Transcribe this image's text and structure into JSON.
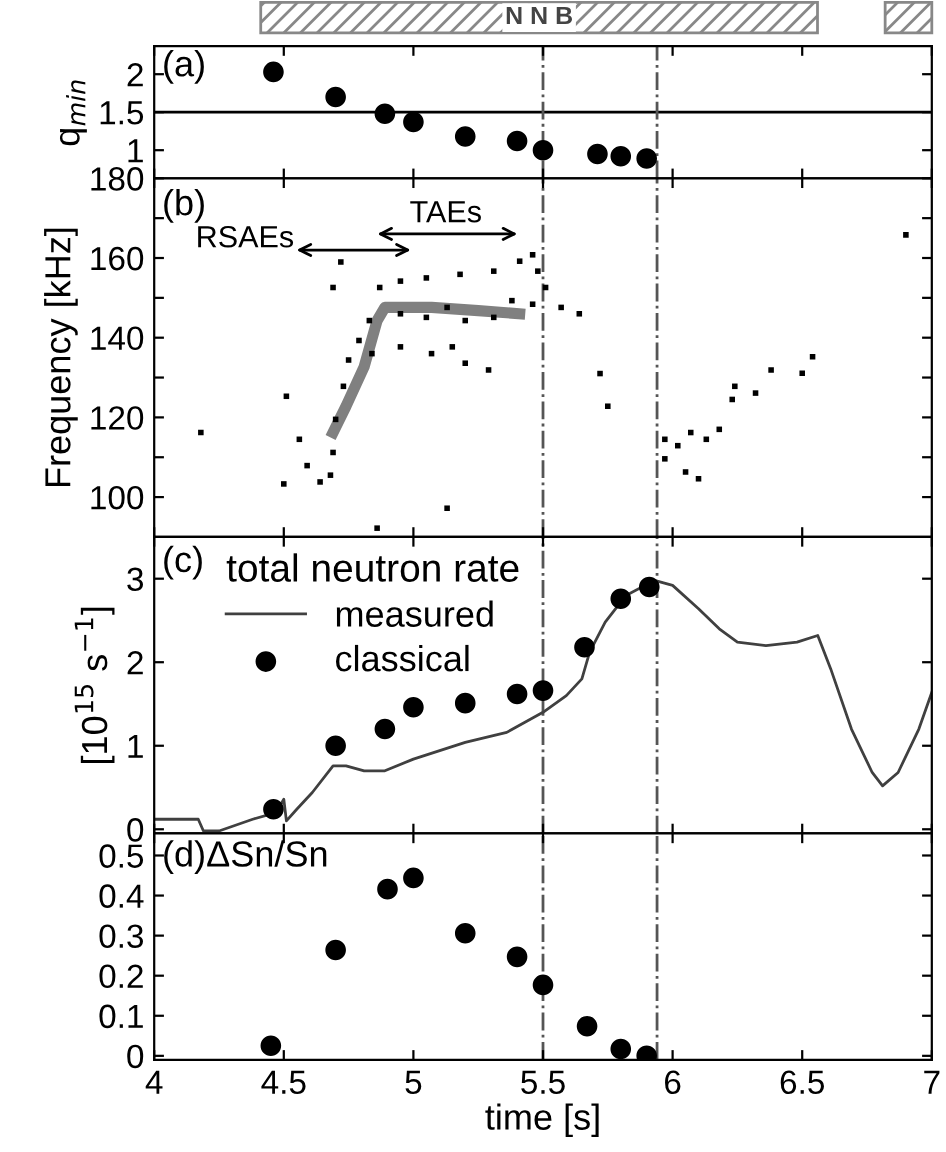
{
  "chart_data": [
    {
      "type": "scatter",
      "ylabel": "q$_{min}$",
      "marker": "circle",
      "tick_labels": "y",
      "legend": false,
      "grid": false,
      "x": [
        4.46,
        4.7,
        4.89,
        5.0,
        5.2,
        5.4,
        5.5,
        5.71,
        5.8,
        5.9
      ],
      "series": [
        {
          "color": "#000000",
          "values": [
            2.03,
            1.7,
            1.48,
            1.37,
            1.18,
            1.12,
            1.0,
            0.95,
            0.92,
            0.89
          ]
        }
      ],
      "xlim": [
        4,
        7
      ],
      "xticks": [
        4,
        4.5,
        5,
        5.5,
        6,
        6.5,
        7
      ],
      "ylim": [
        0.63,
        2.37
      ],
      "yticks": [
        1,
        1.5,
        2
      ],
      "annotations": [
        "(a)",
        "N N B"
      ],
      "ref_lines": [
        {
          "axis": "y",
          "value": 1.5,
          "line_style": "solid"
        },
        {
          "axis": "x",
          "value": 5.5,
          "line_style": "dashdot",
          "color": "#555555"
        },
        {
          "axis": "x",
          "value": 5.94,
          "line_style": "dashdot",
          "color": "#555555"
        }
      ]
    },
    {
      "type": "scatter",
      "ylabel": "Frequency [kHz]",
      "tick_labels": "y",
      "legend": false,
      "grid": false,
      "series": [
        {
          "color": "#000000",
          "marker": "square",
          "x": [
            4.18,
            4.5,
            4.51,
            4.56,
            4.59,
            4.64,
            4.68,
            4.69,
            4.7,
            4.73,
            4.75,
            4.79,
            4.83,
            4.87,
            4.95,
            5.05,
            5.18,
            5.31,
            5.41,
            5.46,
            4.84,
            4.95,
            5.07,
            5.2,
            5.29,
            5.15,
            4.95,
            5.05,
            5.13,
            5.2,
            5.31,
            5.38,
            5.46,
            5.48,
            5.51,
            5.57,
            5.64,
            5.72,
            5.75,
            4.72,
            4.69,
            5.97,
            5.97,
            6.02,
            6.05,
            6.07,
            6.1,
            6.13,
            6.18,
            6.23,
            6.24,
            6.32,
            6.38,
            6.5,
            6.54,
            4.86,
            5.13,
            6.9
          ],
          "values": [
            116.2,
            103.3,
            125.3,
            114.5,
            107.9,
            103.8,
            105.5,
            111.2,
            119.5,
            127.8,
            134.4,
            139.3,
            144.3,
            152.6,
            154.2,
            155.0,
            155.9,
            156.7,
            159.2,
            160.8,
            136.0,
            137.7,
            136.0,
            133.6,
            131.9,
            137.7,
            146.0,
            145.1,
            147.6,
            144.3,
            145.1,
            149.3,
            148.4,
            156.7,
            152.6,
            147.6,
            146.0,
            131.0,
            122.8,
            159.0,
            152.6,
            109.6,
            114.5,
            112.9,
            106.3,
            116.2,
            104.6,
            114.5,
            117.0,
            124.5,
            127.8,
            126.1,
            131.9,
            131.1,
            135.2,
            92.2,
            97.2,
            165.8
          ]
        },
        {
          "type": "line",
          "color": "#808080",
          "line_style": "solid",
          "x": [
            4.69,
            4.74,
            4.81,
            4.86,
            4.89,
            5.07,
            5.25,
            5.41
          ],
          "values": [
            116.2,
            122.8,
            132.7,
            144.3,
            147.6,
            147.6,
            146.8,
            146.0
          ]
        }
      ],
      "xlim": [
        4,
        7
      ],
      "xticks": [
        4,
        4.5,
        5,
        5.5,
        6,
        6.5,
        7
      ],
      "ylim": [
        90,
        180
      ],
      "yticks": [
        100,
        {
          "value": 110,
          "label": null
        },
        120,
        {
          "value": 130,
          "label": null
        },
        140,
        {
          "value": 150,
          "label": null
        },
        160,
        {
          "value": 170,
          "label": null
        },
        180
      ],
      "annotations": [
        "(b)",
        "RSAEs",
        "TAEs"
      ],
      "ref_lines": [
        {
          "axis": "x",
          "value": 5.5,
          "line_style": "dashdot",
          "color": "#555555"
        },
        {
          "axis": "x",
          "value": 5.94,
          "line_style": "dashdot",
          "color": "#555555"
        }
      ]
    },
    {
      "type": "scatter",
      "ylabel": "[10$^{15}$ s$^{−1}$]",
      "tick_labels": "y",
      "legend": "top left",
      "legend_title": "total neutron rate",
      "grid": false,
      "series": [
        {
          "name": "measured",
          "type": "line",
          "color": "#404040",
          "line_style": "solid",
          "x": [
            4.0,
            4.17,
            4.19,
            4.25,
            4.38,
            4.47,
            4.5,
            4.51,
            4.55,
            4.61,
            4.69,
            4.74,
            4.81,
            4.89,
            5.0,
            5.2,
            5.36,
            5.5,
            5.59,
            5.65,
            5.68,
            5.74,
            5.82,
            5.93,
            6.0,
            6.1,
            6.18,
            6.25,
            6.36,
            6.48,
            6.56,
            6.61,
            6.69,
            6.77,
            6.81,
            6.87,
            6.95,
            7.0
          ],
          "values": [
            0.12,
            0.12,
            -0.02,
            -0.02,
            0.12,
            0.2,
            0.36,
            0.1,
            0.24,
            0.44,
            0.76,
            0.76,
            0.7,
            0.7,
            0.84,
            1.04,
            1.16,
            1.4,
            1.6,
            1.8,
            2.12,
            2.48,
            2.8,
            2.98,
            2.92,
            2.64,
            2.4,
            2.24,
            2.2,
            2.24,
            2.32,
            1.92,
            1.2,
            0.68,
            0.52,
            0.68,
            1.2,
            1.64
          ]
        },
        {
          "name": "classical",
          "color": "#000000",
          "marker": "circle",
          "x": [
            4.46,
            4.7,
            4.89,
            5.0,
            5.2,
            5.4,
            5.5,
            5.66,
            5.8,
            5.91
          ],
          "values": [
            0.24,
            1.0,
            1.2,
            1.46,
            1.51,
            1.62,
            1.66,
            2.18,
            2.76,
            2.9
          ]
        }
      ],
      "xlim": [
        4,
        7
      ],
      "xticks": [
        4,
        4.5,
        5,
        5.5,
        6,
        6.5,
        7
      ],
      "ylim": [
        -0.05,
        3.5
      ],
      "yticks": [
        0,
        1,
        2,
        3
      ],
      "annotations": [
        "(c)"
      ],
      "ref_lines": [
        {
          "axis": "x",
          "value": 5.5,
          "line_style": "dashdot",
          "color": "#555555"
        },
        {
          "axis": "x",
          "value": 5.94,
          "line_style": "dashdot",
          "color": "#555555"
        }
      ]
    },
    {
      "type": "scatter",
      "xlabel": "time [s]",
      "marker": "circle",
      "legend": false,
      "grid": false,
      "x": [
        4.45,
        4.7,
        4.9,
        5.0,
        5.2,
        5.4,
        5.5,
        5.67,
        5.8,
        5.9
      ],
      "series": [
        {
          "color": "#000000",
          "values": [
            0.025,
            0.264,
            0.416,
            0.444,
            0.306,
            0.247,
            0.177,
            0.074,
            0.017,
            0.0
          ]
        }
      ],
      "xlim": [
        4,
        7
      ],
      "xticks": [
        4,
        4.5,
        5,
        5.5,
        6,
        6.5,
        7
      ],
      "ylim": [
        -0.01,
        0.555
      ],
      "yticks": [
        0,
        0.1,
        0.2,
        0.3,
        0.4,
        0.5
      ],
      "annotations": [
        "(d)ΔSn/Sn"
      ],
      "ref_lines": [
        {
          "axis": "x",
          "value": 5.5,
          "line_style": "dashdot",
          "color": "#555555"
        },
        {
          "axis": "x",
          "value": 5.94,
          "line_style": "dashdot",
          "color": "#555555"
        }
      ]
    }
  ]
}
